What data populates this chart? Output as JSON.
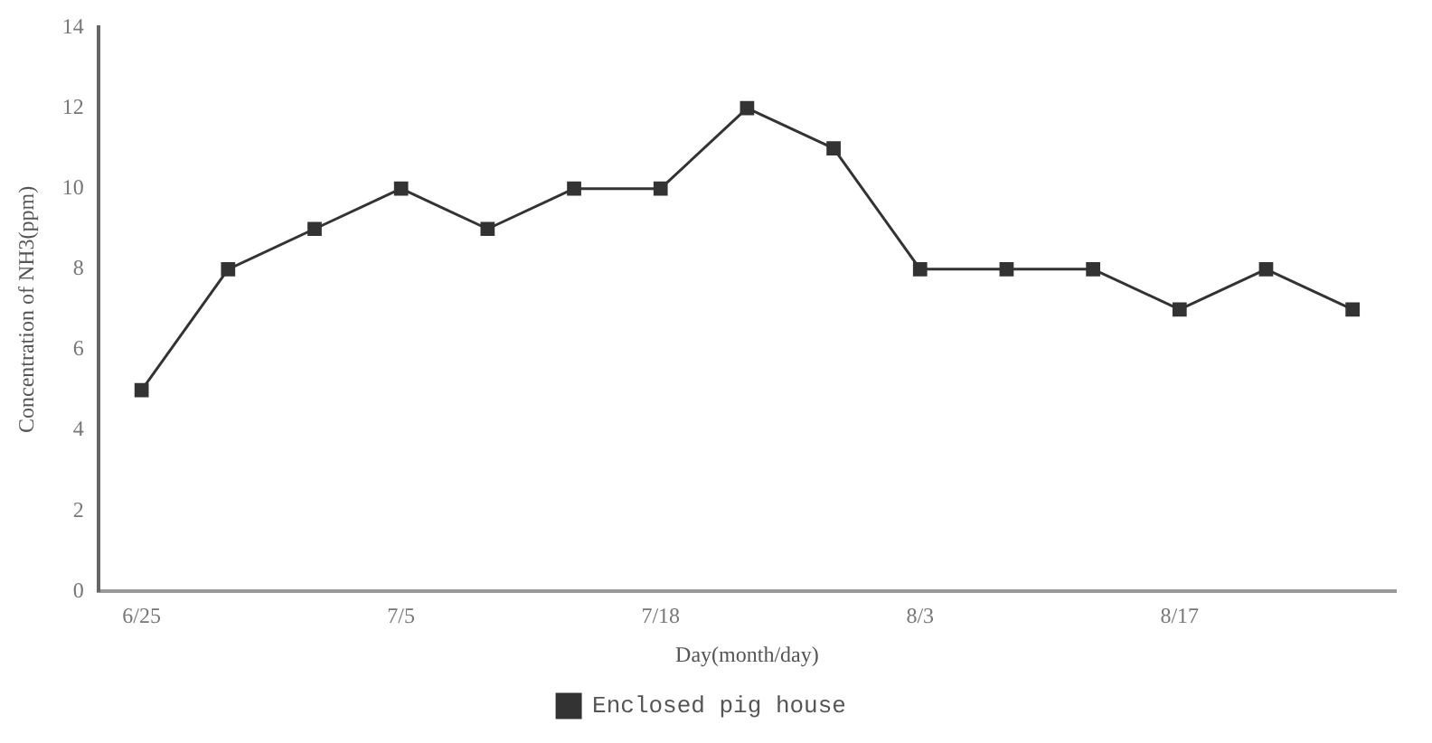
{
  "chart_data": {
    "type": "line",
    "xlabel": "Day(month/day)",
    "ylabel": "Concentration of NH3(ppm)",
    "categories": [
      "6/25",
      null,
      null,
      "7/5",
      null,
      null,
      "7/18",
      null,
      null,
      "8/3",
      null,
      null,
      "8/17",
      null,
      null
    ],
    "series": [
      {
        "name": "Enclosed pig house",
        "color": "#333333",
        "values": [
          5,
          8,
          9,
          10,
          9,
          10,
          10,
          12,
          11,
          8,
          8,
          8,
          7,
          8,
          7
        ]
      }
    ],
    "ylim": [
      0,
      14
    ],
    "yticks": [
      0,
      2,
      4,
      6,
      8,
      10,
      12,
      14
    ],
    "grid": false,
    "legend": "bottom",
    "marker": "square",
    "line_style": "solid"
  }
}
